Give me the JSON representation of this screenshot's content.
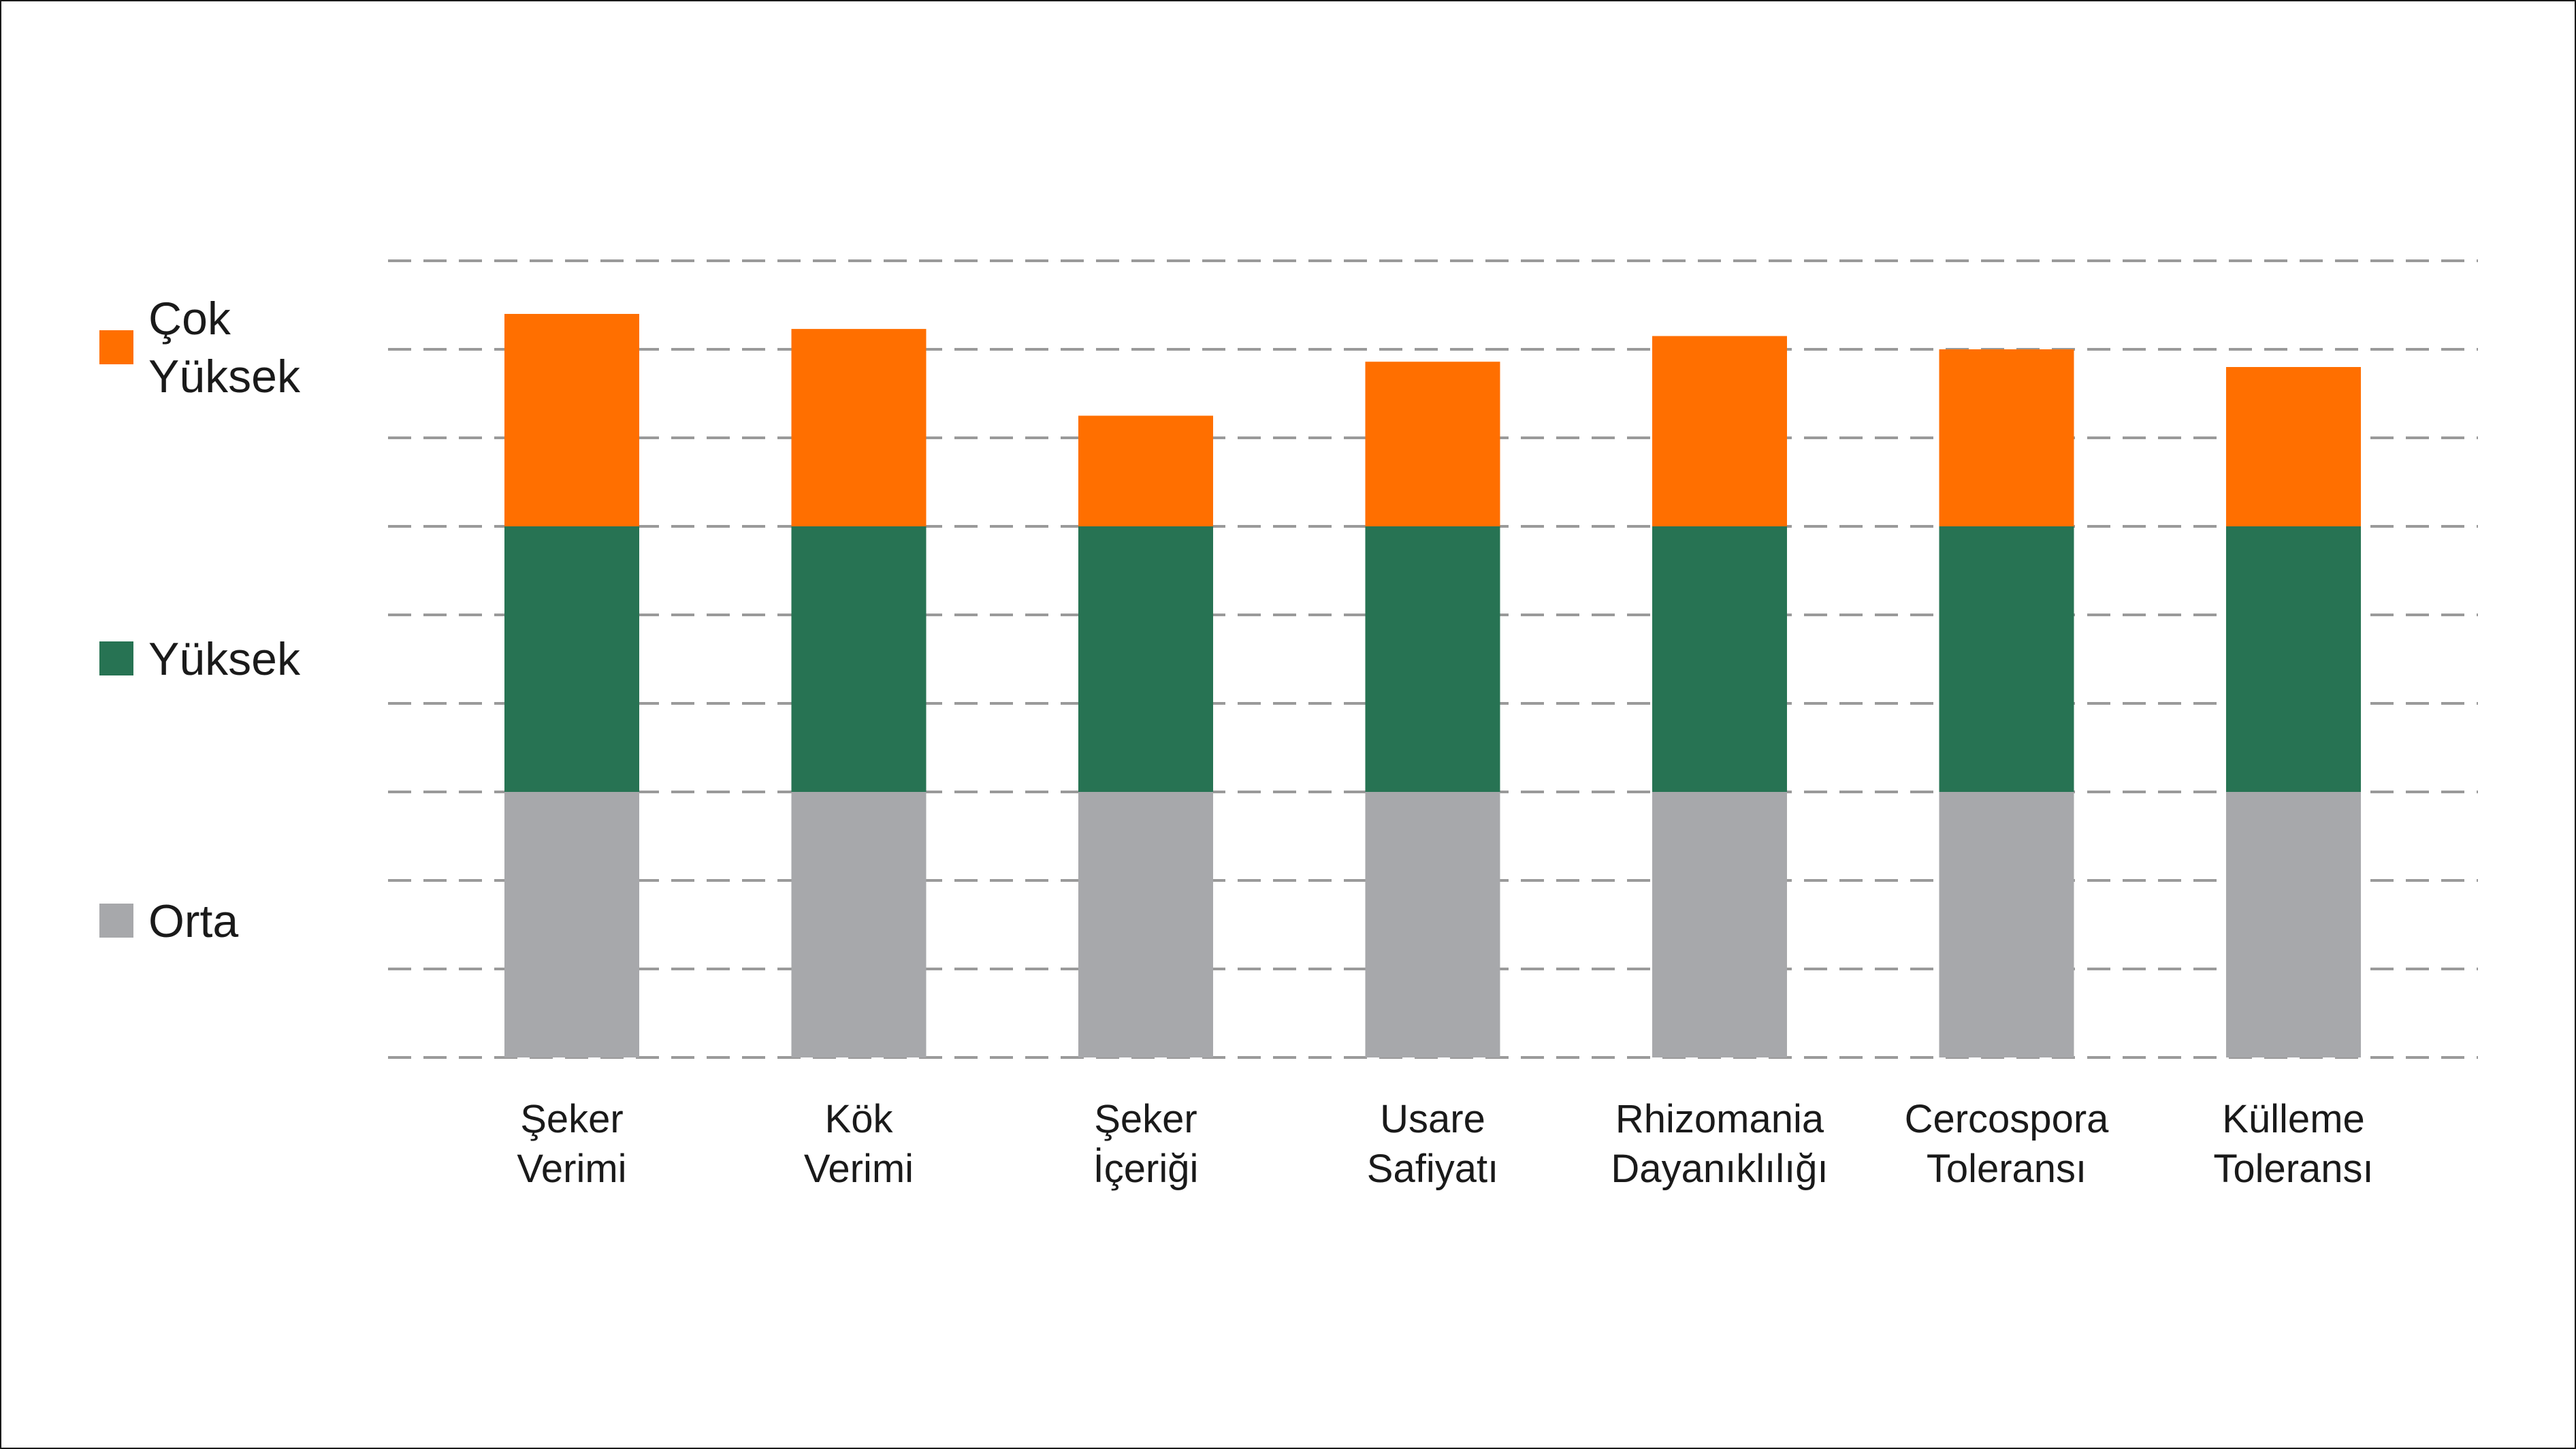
{
  "chart_data": {
    "type": "bar",
    "stacked": true,
    "title": "",
    "xlabel": "",
    "ylabel": "",
    "ylim": [
      0,
      9
    ],
    "grid": true,
    "legend_position": "left",
    "categories": [
      [
        "Şeker",
        "Verimi"
      ],
      [
        "Kök",
        "Verimi"
      ],
      [
        "Şeker",
        "İçeriği"
      ],
      [
        "Usare",
        "Safiyatı"
      ],
      [
        "Rhizomania",
        "Dayanıklılığı"
      ],
      [
        "Cercospora",
        "Toleransı"
      ],
      [
        "Külleme",
        "Toleransı"
      ]
    ],
    "series": [
      {
        "name": "Orta",
        "color": "#a7a8ab",
        "values": [
          3,
          3,
          3,
          3,
          3,
          3,
          3
        ]
      },
      {
        "name": "Yüksek",
        "color": "#277353",
        "values": [
          3,
          3,
          3,
          3,
          3,
          3,
          3
        ]
      },
      {
        "name": "Çok Yüksek",
        "color": "#ff6f00",
        "values": [
          2.4,
          2.23,
          1.25,
          1.86,
          2.15,
          2.0,
          1.8
        ]
      }
    ],
    "legend": [
      {
        "series": 2,
        "lines": [
          "Çok",
          "Yüksek"
        ]
      },
      {
        "series": 1,
        "lines": [
          "Yüksek"
        ]
      },
      {
        "series": 0,
        "lines": [
          "Orta"
        ]
      }
    ]
  }
}
